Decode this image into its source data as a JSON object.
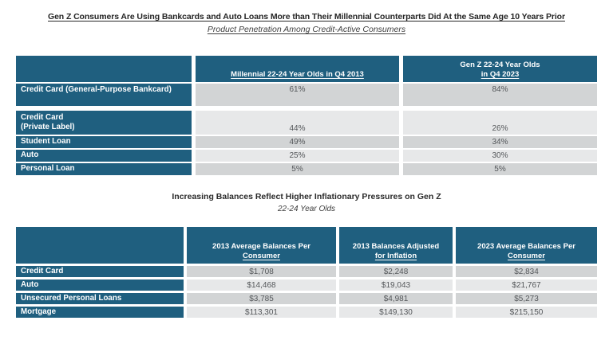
{
  "colors": {
    "header_teal": "#1F5F7F",
    "row_gray_dark": "#D2D4D5",
    "row_gray_light": "#E7E8E9",
    "value_text": "#54575A"
  },
  "section1": {
    "title": "Gen Z Consumers Are Using Bankcards and Auto Loans More than Their Millennial Counterparts Did At the Same Age 10 Years Prior",
    "subtitle": "Product Penetration Among Credit-Active Consumers"
  },
  "section2": {
    "title": "Increasing Balances Reflect Higher Inflationary Pressures on Gen Z",
    "subtitle": "22-24 Year Olds"
  },
  "table1": {
    "col_headers": {
      "millennial": {
        "line1": "",
        "line2": "Millennial 22-24 Year Olds in Q4 2013"
      },
      "genz": {
        "line1": "Gen Z 22-24 Year Olds",
        "line2": "in Q4 2023"
      }
    },
    "rows": [
      {
        "label": "Credit Card (General-Purpose Bankcard)",
        "millennial": "61%",
        "genz": "84%"
      },
      {
        "label1": "Credit Card",
        "label2": "(Private Label)",
        "millennial": "44%",
        "genz": "26%"
      },
      {
        "label": "Student Loan",
        "millennial": "49%",
        "genz": "34%"
      },
      {
        "label": "Auto",
        "millennial": "25%",
        "genz": "30%"
      },
      {
        "label": "Personal Loan",
        "millennial": "5%",
        "genz": "5%"
      }
    ]
  },
  "table2": {
    "col_headers": {
      "avg2013": {
        "line1": "2013 Average Balances Per",
        "line2": "Consumer"
      },
      "adjusted": {
        "line1": "2013 Balances Adjusted",
        "line2": "for Inflation"
      },
      "avg2023": {
        "line1": "2023 Average Balances Per",
        "line2": "Consumer"
      }
    },
    "rows": [
      {
        "label": "Credit Card",
        "avg2013": "$1,708",
        "adjusted": "$2,248",
        "avg2023": "$2,834"
      },
      {
        "label": "Auto",
        "avg2013": "$14,468",
        "adjusted": "$19,043",
        "avg2023": "$21,767"
      },
      {
        "label": "Unsecured Personal Loans",
        "avg2013": "$3,785",
        "adjusted": "$4,981",
        "avg2023": "$5,273"
      },
      {
        "label": "Mortgage",
        "avg2013": "$113,301",
        "adjusted": "$149,130",
        "avg2023": "$215,150"
      }
    ]
  },
  "chart_data": [
    {
      "type": "table",
      "title": "Gen Z Consumers Are Using Bankcards and Auto Loans More than Their Millennial Counterparts Did At the Same Age 10 Years Prior",
      "subtitle": "Product Penetration Among Credit-Active Consumers",
      "columns": [
        "",
        "Millennial 22-24 Year Olds in Q4 2013",
        "Gen Z 22-24 Year Olds in Q4 2023"
      ],
      "rows": [
        [
          "Credit Card (General-Purpose Bankcard)",
          "61%",
          "84%"
        ],
        [
          "Credit Card (Private Label)",
          "44%",
          "26%"
        ],
        [
          "Student Loan",
          "49%",
          "34%"
        ],
        [
          "Auto",
          "25%",
          "30%"
        ],
        [
          "Personal Loan",
          "5%",
          "5%"
        ]
      ]
    },
    {
      "type": "table",
      "title": "Increasing Balances Reflect Higher Inflationary Pressures on Gen Z",
      "subtitle": "22-24 Year Olds",
      "columns": [
        "",
        "2013 Average Balances Per Consumer",
        "2013 Balances Adjusted for Inflation",
        "2023 Average Balances Per Consumer"
      ],
      "rows": [
        [
          "Credit Card",
          "$1,708",
          "$2,248",
          "$2,834"
        ],
        [
          "Auto",
          "$14,468",
          "$19,043",
          "$21,767"
        ],
        [
          "Unsecured Personal Loans",
          "$3,785",
          "$4,981",
          "$5,273"
        ],
        [
          "Mortgage",
          "$113,301",
          "$149,130",
          "$215,150"
        ]
      ]
    }
  ]
}
